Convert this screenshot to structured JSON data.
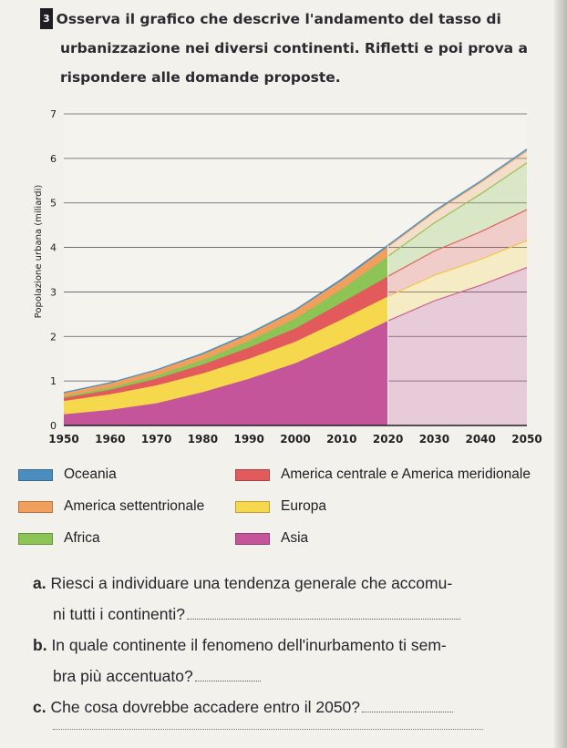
{
  "exercise": {
    "number": "3",
    "intro_lines": [
      "Osserva il grafico che descrive l'andamento del tasso di",
      "urbanizzazione nei diversi continenti. Rifletti e poi prova a",
      "rispondere alle domande proposte."
    ]
  },
  "chart_data": {
    "type": "area",
    "stacked": true,
    "title": "",
    "xlabel": "",
    "ylabel": "Popolazione urbana (miliardi)",
    "xlim": [
      1950,
      2050
    ],
    "ylim": [
      0,
      7
    ],
    "x_ticks": [
      1950,
      1960,
      1970,
      1980,
      1990,
      2000,
      2010,
      2020,
      2030,
      2040,
      2050
    ],
    "y_ticks": [
      0,
      1,
      2,
      3,
      4,
      5,
      6,
      7
    ],
    "grid": "horizontal",
    "projection_start": 2020,
    "x": [
      1950,
      1960,
      1970,
      1980,
      1990,
      2000,
      2010,
      2020,
      2030,
      2040,
      2050
    ],
    "series": [
      {
        "name": "Asia",
        "color": "#c4559a",
        "values": [
          0.25,
          0.35,
          0.5,
          0.75,
          1.05,
          1.4,
          1.85,
          2.35,
          2.8,
          3.15,
          3.55
        ]
      },
      {
        "name": "Europa",
        "color": "#f6d84c",
        "values": [
          0.3,
          0.35,
          0.4,
          0.42,
          0.45,
          0.48,
          0.53,
          0.55,
          0.57,
          0.58,
          0.6
        ]
      },
      {
        "name": "America centrale e America meridionale",
        "color": "#e35a5c",
        "values": [
          0.07,
          0.1,
          0.15,
          0.2,
          0.25,
          0.3,
          0.38,
          0.45,
          0.55,
          0.62,
          0.7
        ]
      },
      {
        "name": "Africa",
        "color": "#8cc455",
        "values": [
          0.03,
          0.05,
          0.07,
          0.1,
          0.15,
          0.22,
          0.3,
          0.45,
          0.63,
          0.85,
          1.05
        ]
      },
      {
        "name": "America settentrionale",
        "color": "#f0a05c",
        "values": [
          0.08,
          0.1,
          0.12,
          0.13,
          0.15,
          0.18,
          0.2,
          0.22,
          0.24,
          0.26,
          0.27
        ]
      },
      {
        "name": "Oceania",
        "color": "#4a8dbe",
        "values": [
          0.01,
          0.01,
          0.01,
          0.02,
          0.02,
          0.02,
          0.03,
          0.03,
          0.03,
          0.03,
          0.04
        ]
      }
    ]
  },
  "legend": {
    "items": [
      {
        "label": "Oceania",
        "color": "#4a8dbe"
      },
      {
        "label": "America centrale e America meridionale",
        "color": "#e35a5c"
      },
      {
        "label": "America settentrionale",
        "color": "#f0a05c"
      },
      {
        "label": "Europa",
        "color": "#f6d84c"
      },
      {
        "label": "Africa",
        "color": "#8cc455"
      },
      {
        "label": "Asia",
        "color": "#c4559a"
      }
    ]
  },
  "questions": [
    {
      "letter": "a.",
      "lines": [
        "Riesci a individuare una tendenza generale che accomu-",
        "ni tutti i continenti?"
      ]
    },
    {
      "letter": "b.",
      "lines": [
        "In quale continente il fenomeno dell'inurbamento ti sem-",
        "bra più accentuato?"
      ]
    },
    {
      "letter": "c.",
      "lines": [
        "Che cosa dovrebbe accadere entro il 2050?"
      ]
    }
  ]
}
